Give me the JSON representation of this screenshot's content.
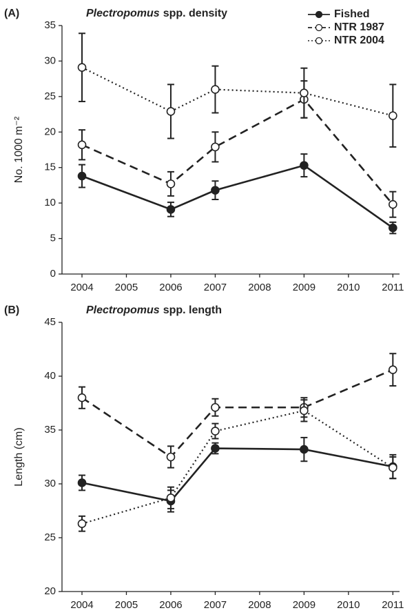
{
  "chart_data": [
    {
      "type": "line",
      "panel": "(A)",
      "title": [
        "Plectropomus",
        "spp. density"
      ],
      "ylabel": "No. 1000 m⁻²",
      "x": [
        2004,
        2006,
        2007,
        2009,
        2011
      ],
      "xlim": [
        2003.55,
        2011.15
      ],
      "xticks": [
        2004,
        2005,
        2006,
        2007,
        2008,
        2009,
        2010,
        2011
      ],
      "ylim": [
        0,
        35
      ],
      "yticks": [
        0,
        5,
        10,
        15,
        20,
        25,
        30,
        35
      ],
      "legend": "top-right",
      "series": [
        {
          "name": "Fished",
          "color": "#222222",
          "linestyle": "solid",
          "marker": "filled",
          "values": [
            13.8,
            9.1,
            11.8,
            15.3,
            6.5
          ],
          "errors": [
            1.6,
            1.0,
            1.3,
            1.6,
            0.8
          ]
        },
        {
          "name": "NTR 1987",
          "color": "#222222",
          "linestyle": "dashed",
          "marker": "open",
          "values": [
            18.2,
            12.7,
            17.9,
            24.6,
            9.8
          ],
          "errors": [
            2.1,
            1.7,
            2.1,
            2.6,
            1.8
          ]
        },
        {
          "name": "NTR 2004",
          "color": "#222222",
          "linestyle": "dotted",
          "marker": "open",
          "values": [
            29.1,
            22.9,
            26.0,
            25.5,
            22.3
          ],
          "errors": [
            4.8,
            3.8,
            3.3,
            3.5,
            4.4
          ]
        }
      ]
    },
    {
      "type": "line",
      "panel": "(B)",
      "title": [
        "Plectropomus",
        "spp. length"
      ],
      "ylabel": "Length (cm)",
      "x": [
        2004,
        2006,
        2007,
        2009,
        2011
      ],
      "xlim": [
        2003.55,
        2011.15
      ],
      "xticks": [
        2004,
        2005,
        2006,
        2007,
        2008,
        2009,
        2010,
        2011
      ],
      "ylim": [
        20,
        45
      ],
      "yticks": [
        20,
        25,
        30,
        35,
        40,
        45
      ],
      "series": [
        {
          "color": "#222222",
          "linestyle": "solid",
          "marker": "filled",
          "values": [
            30.1,
            28.4,
            33.3,
            33.2,
            31.6
          ],
          "errors": [
            0.7,
            1.0,
            0.5,
            1.1,
            1.1
          ]
        },
        {
          "color": "#222222",
          "linestyle": "dashed",
          "marker": "open",
          "values": [
            38.0,
            32.5,
            37.1,
            37.1,
            40.6
          ],
          "errors": [
            1.0,
            1.0,
            0.8,
            0.9,
            1.5
          ]
        },
        {
          "color": "#222222",
          "linestyle": "dotted",
          "marker": "open",
          "values": [
            26.3,
            28.7,
            34.9,
            36.8,
            31.5
          ],
          "errors": [
            0.7,
            1.0,
            0.7,
            1.0,
            1.0
          ]
        }
      ]
    }
  ]
}
